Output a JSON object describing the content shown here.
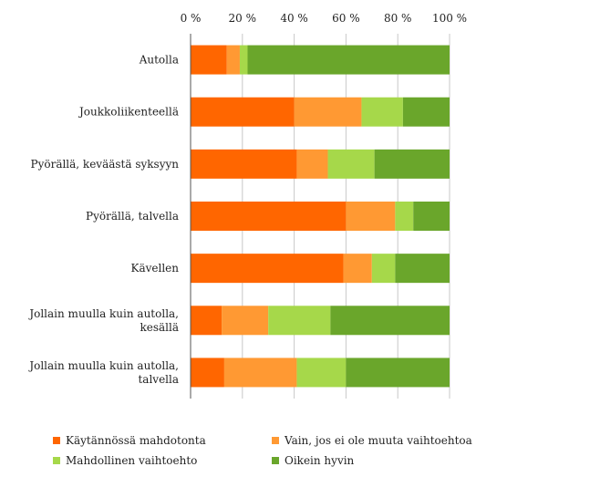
{
  "chart_data": {
    "type": "bar",
    "orientation": "horizontal",
    "stacked": true,
    "xlim": [
      0,
      100
    ],
    "x_ticks": [
      "0 %",
      "20 %",
      "40 %",
      "60 %",
      "80 %",
      "100 %"
    ],
    "tick_values": [
      0,
      20,
      40,
      60,
      80,
      100
    ],
    "grid": true,
    "legend_position": "bottom",
    "categories": [
      [
        "Autolla"
      ],
      [
        "Joukkoliikenteellä"
      ],
      [
        "Pyörällä, keväästä syksyyn"
      ],
      [
        "Pyörällä, talvella"
      ],
      [
        "Kävellen"
      ],
      [
        "Jollain muulla kuin autolla,",
        "kesällä"
      ],
      [
        "Jollain muulla kuin autolla,",
        "talvella"
      ]
    ],
    "series": [
      {
        "name": "Käytännössä mahdotonta",
        "color": "#ff6600",
        "values": [
          14,
          40,
          41,
          60,
          59,
          12,
          13
        ]
      },
      {
        "name": "Vain, jos ei ole muuta vaihtoehtoa",
        "color": "#ff9933",
        "values": [
          5,
          26,
          12,
          19,
          11,
          18,
          28
        ]
      },
      {
        "name": "Mahdollinen vaihtoehto",
        "color": "#a6d84a",
        "values": [
          3,
          16,
          18,
          7,
          9,
          24,
          19
        ]
      },
      {
        "name": "Oikein hyvin",
        "color": "#6aa62b",
        "values": [
          78,
          18,
          29,
          14,
          21,
          46,
          40
        ]
      }
    ]
  }
}
